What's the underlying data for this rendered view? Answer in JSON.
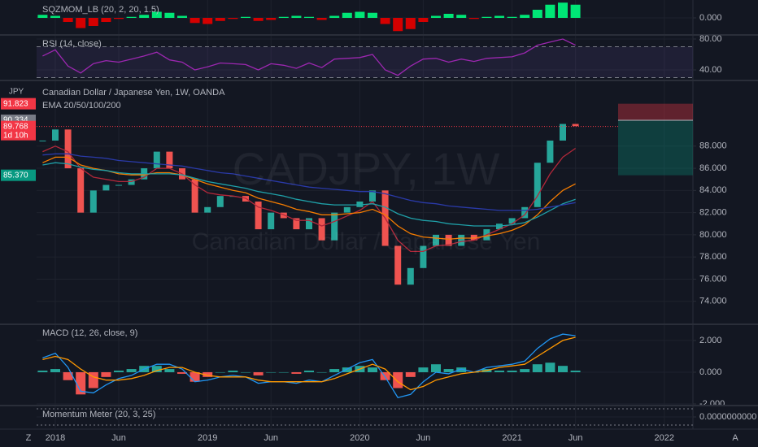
{
  "chart_data": [
    {
      "type": "bar",
      "title": "SQZMOM_LB (20, 2, 20, 1.5)",
      "ylim": [
        -1.6,
        1.6
      ],
      "yticks": [
        {
          "value": 0,
          "label": "0.000"
        }
      ],
      "series": [
        {
          "kind": "histogram",
          "up_color": "#00e676",
          "down_color": "#d50000",
          "values": [
            null,
            0.3,
            0.2,
            -0.4,
            -1.0,
            -0.8,
            -0.4,
            -0.1,
            0.1,
            0.3,
            0.6,
            0.5,
            0.2,
            -0.5,
            -0.6,
            -0.3,
            -0.1,
            0.1,
            -0.3,
            -0.2,
            0.1,
            0.2,
            0.1,
            -0.2,
            0.2,
            0.5,
            0.6,
            0.5,
            -0.6,
            -1.3,
            -1.1,
            -0.4,
            0.2,
            0.4,
            0.3,
            -0.1,
            0.1,
            0.2,
            0.1,
            0.3,
            0.8,
            1.3,
            1.5,
            1.3
          ]
        }
      ]
    },
    {
      "type": "line",
      "title": "RSI (14, close)",
      "ylim": [
        27.4,
        84.2
      ],
      "yticks": [
        {
          "value": 80,
          "label": "80.00"
        },
        {
          "value": 40,
          "label": "40.00"
        }
      ],
      "levels": [
        70,
        30
      ],
      "series": [
        {
          "kind": "line",
          "color": "#9c27b0",
          "values": [
            null,
            58,
            66,
            45,
            36,
            48,
            52,
            50,
            54,
            58,
            63,
            53,
            50,
            40,
            44,
            49,
            48,
            47,
            40,
            48,
            46,
            42,
            49,
            43,
            54,
            55,
            56,
            60,
            40,
            33,
            45,
            54,
            55,
            50,
            54,
            51,
            55,
            56,
            57,
            62,
            72,
            76,
            80,
            72
          ]
        }
      ]
    },
    {
      "type": "candlestick",
      "title": "Canadian Dollar / Japanese Yen, 1W, OANDA",
      "subtitle": "EMA 20/50/100/200",
      "currency": "JPY",
      "watermark": "CADJPY, 1W",
      "watermark_subtitle": "Canadian Dollar / Japanese Yen",
      "ylim": [
        72,
        93.85
      ],
      "yticks": [
        {
          "value": 74,
          "label": "74.000"
        },
        {
          "value": 76,
          "label": "76.000"
        },
        {
          "value": 78,
          "label": "78.000"
        },
        {
          "value": 80,
          "label": "80.000"
        },
        {
          "value": 82,
          "label": "82.000"
        },
        {
          "value": 84,
          "label": "84.000"
        },
        {
          "value": 86,
          "label": "86.000"
        },
        {
          "value": 88,
          "label": "88.000"
        }
      ],
      "categories": [
        null,
        null,
        "2018",
        null,
        null,
        null,
        null,
        "Jun",
        null,
        null,
        null,
        null,
        null,
        null,
        "2019",
        null,
        null,
        null,
        null,
        "Jun",
        null,
        null,
        null,
        null,
        null,
        null,
        "2020",
        null,
        null,
        null,
        null,
        "Jun",
        null,
        null,
        null,
        null,
        null,
        null,
        "2021",
        null,
        null,
        null,
        null,
        "Jun",
        null,
        null,
        null,
        null,
        null,
        null,
        "2022",
        null
      ],
      "series": [
        {
          "kind": "candle",
          "up_color": "#26a69a",
          "down_color": "#ef5350",
          "values": [
            null,
            88.5,
            89.5,
            86.0,
            82.0,
            84.0,
            84.5,
            84.5,
            85.0,
            86.0,
            87.5,
            86.0,
            85.0,
            82.0,
            82.5,
            83.5,
            83.5,
            83.0,
            80.5,
            82.0,
            81.5,
            80.5,
            81.5,
            79.5,
            82.0,
            82.5,
            83.0,
            84.0,
            79.0,
            75.5,
            77.0,
            79.0,
            80.0,
            79.0,
            80.0,
            79.5,
            80.5,
            81.0,
            81.5,
            82.5,
            86.5,
            88.5,
            90.0,
            89.8,
            null,
            null,
            null,
            null,
            null,
            null,
            null,
            null
          ]
        },
        {
          "kind": "line",
          "color": "#b2283a",
          "values": [
            null,
            87.5,
            88,
            87.5,
            86,
            85.2,
            85,
            84.8,
            84.8,
            85.2,
            86,
            86,
            85.5,
            84.5,
            83.8,
            83.6,
            83.5,
            83.3,
            82.5,
            82.2,
            81.8,
            81.3,
            81.3,
            80.8,
            81.2,
            81.7,
            82.2,
            83,
            81.5,
            79.5,
            78.5,
            78.5,
            79,
            79.1,
            79.4,
            79.5,
            80,
            80.5,
            81,
            81.8,
            83.5,
            85.5,
            87,
            87.8,
            null,
            null,
            null,
            null,
            null,
            null,
            null,
            null
          ]
        },
        {
          "kind": "line",
          "color": "#f57c00",
          "values": [
            null,
            86.5,
            87,
            87,
            86.3,
            86,
            85.8,
            85.5,
            85.4,
            85.4,
            85.6,
            85.6,
            85.4,
            85,
            84.6,
            84.3,
            84,
            83.8,
            83.3,
            83,
            82.7,
            82.3,
            82.1,
            81.8,
            81.8,
            81.9,
            82,
            82.3,
            81.8,
            80.8,
            80.1,
            79.8,
            79.7,
            79.6,
            79.7,
            79.7,
            79.9,
            80.1,
            80.4,
            80.9,
            81.8,
            83,
            84,
            84.6,
            null,
            null,
            null,
            null,
            null,
            null,
            null,
            null
          ]
        },
        {
          "kind": "line",
          "color": "#1fa0a8",
          "values": [
            null,
            86.3,
            86.5,
            86.4,
            86.1,
            85.9,
            85.8,
            85.6,
            85.5,
            85.5,
            85.5,
            85.5,
            85.4,
            85.1,
            84.8,
            84.6,
            84.4,
            84.2,
            83.9,
            83.7,
            83.5,
            83.2,
            83.0,
            82.8,
            82.7,
            82.7,
            82.7,
            82.8,
            82.5,
            81.9,
            81.5,
            81.3,
            81.2,
            81.0,
            80.9,
            80.8,
            80.8,
            80.8,
            80.9,
            81.1,
            81.6,
            82.2,
            82.8,
            83.2,
            null,
            null,
            null,
            null,
            null,
            null,
            null,
            null
          ]
        },
        {
          "kind": "line",
          "color": "#2a3aa8",
          "values": [
            null,
            87.2,
            87.3,
            87.3,
            87.1,
            87.0,
            86.9,
            86.7,
            86.6,
            86.5,
            86.4,
            86.3,
            86.2,
            86.0,
            85.8,
            85.6,
            85.5,
            85.3,
            85.1,
            84.9,
            84.7,
            84.5,
            84.3,
            84.2,
            84.1,
            84.0,
            83.9,
            83.9,
            83.7,
            83.4,
            83.1,
            82.9,
            82.8,
            82.6,
            82.5,
            82.4,
            82.3,
            82.2,
            82.2,
            82.2,
            82.3,
            82.5,
            82.7,
            82.9,
            null,
            null,
            null,
            null,
            null,
            null,
            null,
            null
          ]
        }
      ],
      "position_tool": {
        "stop": {
          "value": 91.823,
          "label": "91.823",
          "color": "#f23645"
        },
        "entry": {
          "value": 90.334,
          "label": "90.334",
          "color": "#787b86"
        },
        "target": {
          "value": 85.37,
          "label": "85.370",
          "color": "#089981"
        }
      },
      "last_price": {
        "value": 89.768,
        "label": "89.768",
        "countdown": "1d 10h",
        "color": "#f23645"
      }
    },
    {
      "type": "line",
      "title": "MACD (12, 26, close, 9)",
      "ylim": [
        -2.05,
        2.97
      ],
      "yticks": [
        {
          "value": 2,
          "label": "2.000"
        },
        {
          "value": 0,
          "label": "0.000"
        },
        {
          "value": -2,
          "label": "-2.000"
        }
      ],
      "series": [
        {
          "kind": "histogram",
          "up_color": "#26a69a",
          "down_color": "#ef5350",
          "values": [
            null,
            0.1,
            0.2,
            -0.5,
            -1.4,
            -1.0,
            -0.3,
            0.1,
            0.2,
            0.4,
            0.4,
            0.2,
            -0.1,
            -0.6,
            -0.3,
            0,
            0.1,
            0,
            -0.2,
            0,
            0,
            -0.1,
            0.1,
            0,
            0.2,
            0.3,
            0.4,
            0.3,
            -0.5,
            -1.0,
            -0.3,
            0.3,
            0.5,
            0.2,
            0.3,
            0,
            0.2,
            0.1,
            0.1,
            0.2,
            0.5,
            0.6,
            0.4,
            0.1
          ]
        },
        {
          "kind": "line",
          "color": "#2196f3",
          "values": [
            null,
            0.9,
            1.2,
            0.3,
            -1.2,
            -1.3,
            -0.8,
            -0.4,
            -0.2,
            0.2,
            0.5,
            0.5,
            0.2,
            -0.6,
            -0.5,
            -0.3,
            -0.2,
            -0.3,
            -0.7,
            -0.6,
            -0.6,
            -0.7,
            -0.5,
            -0.6,
            -0.2,
            0.2,
            0.6,
            0.8,
            -0.3,
            -1.6,
            -1.4,
            -0.6,
            0,
            -0.1,
            0.2,
            0,
            0.3,
            0.4,
            0.5,
            0.7,
            1.5,
            2.1,
            2.4,
            2.3
          ]
        },
        {
          "kind": "line",
          "color": "#ff9800",
          "values": [
            null,
            0.8,
            1.0,
            0.8,
            0.2,
            -0.3,
            -0.5,
            -0.5,
            -0.4,
            -0.2,
            0.1,
            0.3,
            0.3,
            0,
            -0.2,
            -0.3,
            -0.3,
            -0.3,
            -0.5,
            -0.6,
            -0.6,
            -0.6,
            -0.6,
            -0.6,
            -0.4,
            -0.1,
            0.2,
            0.5,
            0.2,
            -0.6,
            -1.1,
            -0.9,
            -0.5,
            -0.3,
            -0.1,
            0,
            0.1,
            0.3,
            0.4,
            0.5,
            1.0,
            1.5,
            2.0,
            2.2
          ]
        }
      ]
    },
    {
      "type": "line",
      "title": "Momentum Meter (20, 3, 25)",
      "ylim": [
        -1,
        1
      ],
      "yticks": [
        {
          "value": 0,
          "label": "0.0000000000"
        }
      ],
      "series": []
    }
  ],
  "footer": {
    "left": "Z",
    "right": "A"
  }
}
